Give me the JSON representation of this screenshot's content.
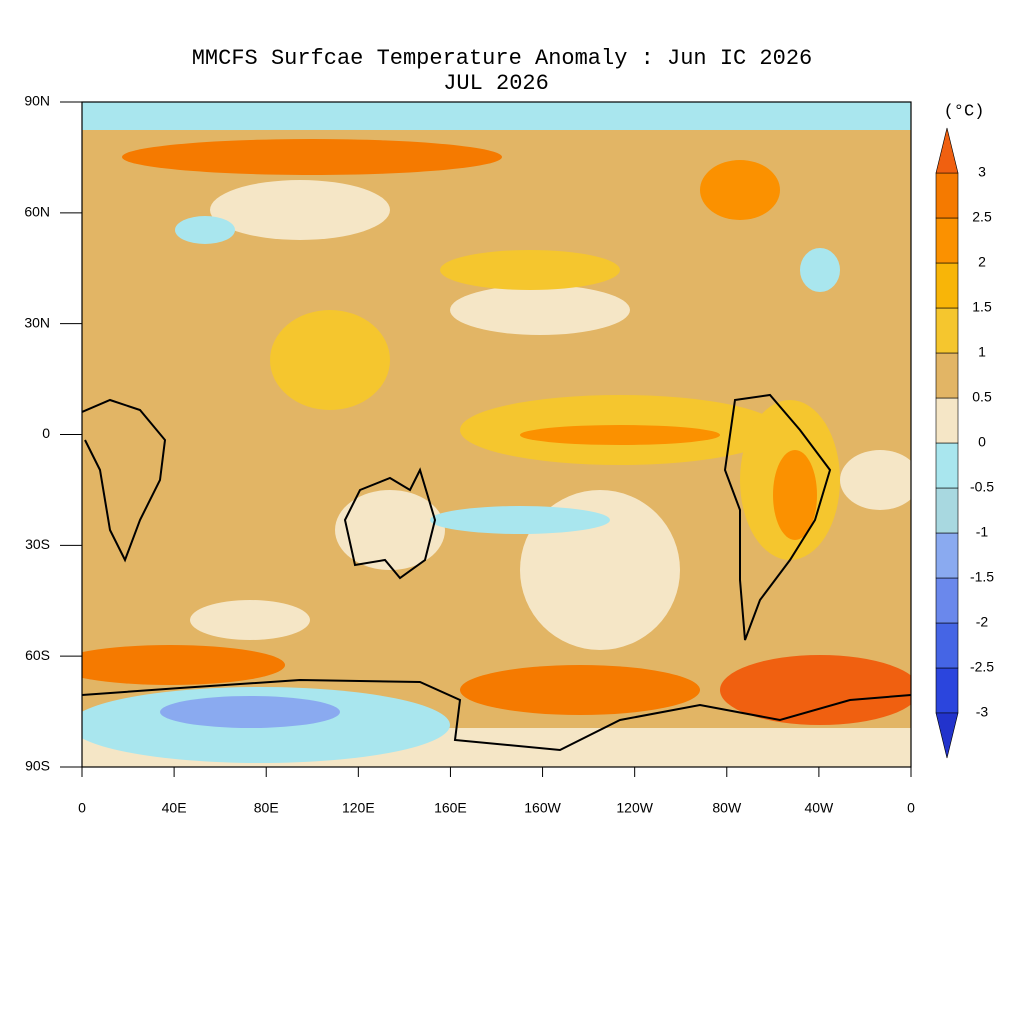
{
  "map": {
    "title": "MMCFS Surfcae Temperature Anomaly : Jun IC 2026",
    "subtitle": "JUL 2026",
    "xlim": [
      0,
      360
    ],
    "ylim": [
      -90,
      90
    ],
    "xticks": [
      0,
      {
        "value": 40,
        "label": "40E"
      },
      {
        "value": 80,
        "label": "80E"
      },
      {
        "value": 120,
        "label": "120E"
      },
      {
        "value": 160,
        "label": "160E"
      },
      {
        "value": 200,
        "label": "160W"
      },
      {
        "value": 240,
        "label": "120W"
      },
      {
        "value": 280,
        "label": "80W"
      },
      {
        "value": 320,
        "label": "40W"
      },
      {
        "value": 360,
        "label": "0"
      }
    ],
    "yticks": [
      {
        "value": 90,
        "label": "90N"
      },
      {
        "value": 60,
        "label": "60N"
      },
      {
        "value": 30,
        "label": "30N"
      },
      0,
      {
        "value": -30,
        "label": "30S"
      },
      {
        "value": -60,
        "label": "60S"
      },
      {
        "value": -90,
        "label": "90S"
      }
    ],
    "colorbar": {
      "unit": "(°C)",
      "levels": [
        -3,
        -2.5,
        -2,
        -1.5,
        -1,
        -0.5,
        0,
        0.5,
        1,
        1.5,
        2,
        2.5,
        3
      ],
      "colors": [
        "#2233cc",
        "#2b45dd",
        "#4565e5",
        "#6a88ec",
        "#8aaaf0",
        "#a8d8e0",
        "#a9e6ee",
        "#f5e6c6",
        "#e2b565",
        "#f5c62e",
        "#f8b508",
        "#fb9100",
        "#f57a00",
        "#f06010"
      ]
    }
  }
}
